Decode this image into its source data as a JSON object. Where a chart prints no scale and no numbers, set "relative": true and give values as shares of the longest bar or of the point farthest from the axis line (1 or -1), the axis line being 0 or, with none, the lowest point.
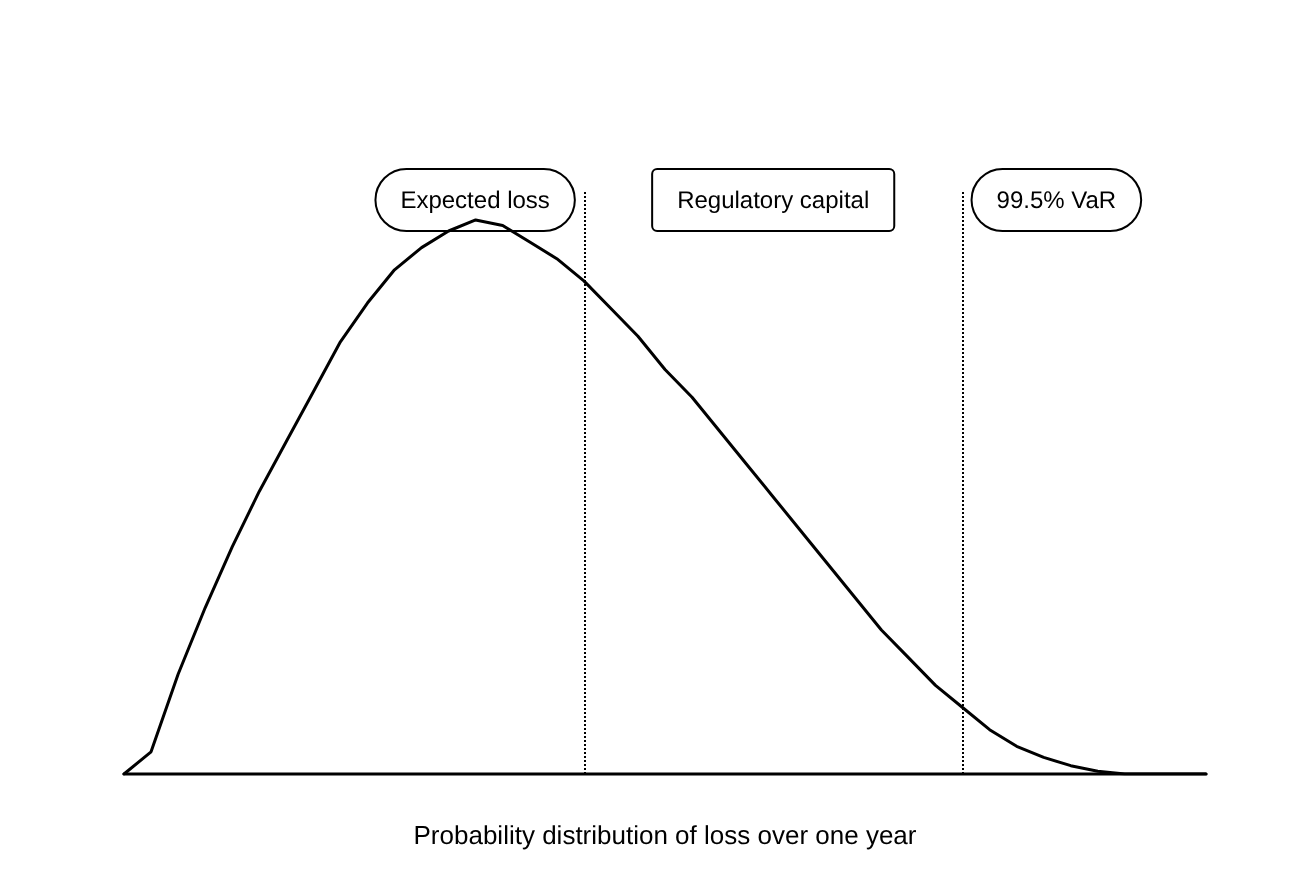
{
  "chart_data": {
    "type": "line",
    "relative": true,
    "xlabel": "Probability distribution of loss over one year",
    "grid": false,
    "marker": "none",
    "line_style": "solid",
    "categories": [
      null,
      null,
      null,
      null,
      null,
      null,
      null,
      null,
      null,
      null,
      null,
      null,
      null,
      null,
      null,
      null,
      null,
      null,
      null,
      null,
      null,
      null,
      null,
      null,
      null,
      null,
      null,
      null,
      null,
      null,
      null,
      null,
      null,
      null,
      null,
      null,
      null,
      null,
      null,
      null,
      null
    ],
    "series": [
      {
        "color": "#000000",
        "values": [
          0,
          0.04,
          0.18,
          0.3,
          0.41,
          0.51,
          0.6,
          0.69,
          0.78,
          0.85,
          0.91,
          0.95,
          0.98,
          1,
          0.99,
          0.96,
          0.93,
          0.89,
          0.84,
          0.79,
          0.73,
          0.68,
          0.62,
          0.56,
          0.5,
          0.44,
          0.38,
          0.32,
          0.26,
          0.21,
          0.16,
          0.12,
          0.08,
          0.05,
          0.03,
          0.015,
          0.005,
          0,
          0,
          0,
          0
        ]
      }
    ],
    "annotations": [
      "Expected loss",
      "Regulatory capital",
      "99.5% VaR"
    ]
  }
}
